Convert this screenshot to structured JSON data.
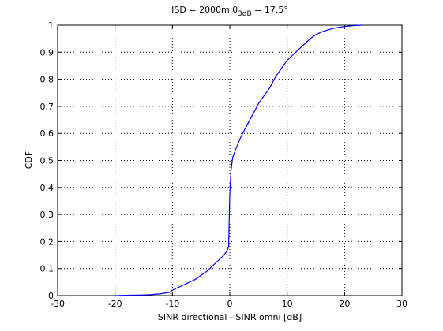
{
  "chart_data": {
    "type": "line",
    "title": {
      "prefix": "ISD = 2000m θ",
      "subscript": "3dB",
      "suffix": " = 17.5°"
    },
    "xlabel": "SINR directional - SINR omni [dB]",
    "ylabel": "CDF",
    "xlim": [
      -30,
      30
    ],
    "ylim": [
      0,
      1
    ],
    "xticks": [
      -30,
      -20,
      -10,
      0,
      10,
      20,
      30
    ],
    "yticks": [
      0,
      0.1,
      0.2,
      0.3,
      0.4,
      0.5,
      0.6,
      0.7,
      0.8,
      0.9,
      1
    ],
    "grid": true,
    "line_color": "#0000ff",
    "series": [
      {
        "x": [
          -20,
          -18,
          -16,
          -14,
          -12,
          -10.5,
          -10,
          -9,
          -8,
          -7,
          -6,
          -5,
          -4,
          -3,
          -2,
          -1,
          -0.5,
          -0.2,
          0,
          0.2,
          0.5,
          1,
          2,
          3,
          4,
          5,
          6,
          7,
          8,
          9,
          10,
          11,
          12,
          13,
          14,
          15,
          16,
          17,
          18,
          19,
          20,
          21,
          22,
          23
        ],
        "y": [
          0,
          0.001,
          0.002,
          0.003,
          0.007,
          0.012,
          0.02,
          0.03,
          0.04,
          0.05,
          0.06,
          0.075,
          0.09,
          0.11,
          0.13,
          0.15,
          0.165,
          0.18,
          0.38,
          0.46,
          0.51,
          0.54,
          0.59,
          0.63,
          0.67,
          0.71,
          0.74,
          0.77,
          0.81,
          0.84,
          0.87,
          0.89,
          0.91,
          0.93,
          0.95,
          0.965,
          0.975,
          0.982,
          0.988,
          0.992,
          0.995,
          0.997,
          0.999,
          1.0
        ]
      }
    ]
  }
}
